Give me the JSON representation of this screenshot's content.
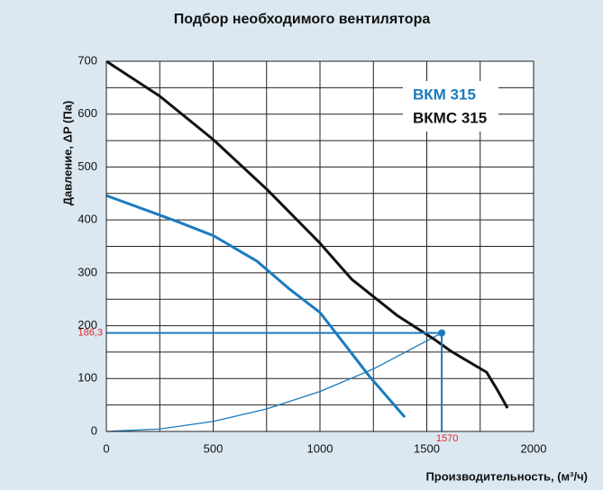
{
  "chart_data": {
    "type": "line",
    "title": "Подбор необходимого вентилятора",
    "y_label": "Давление, ΔP (Па)",
    "x_label": "Производительность, (м³/ч)",
    "xlim": [
      0,
      2000
    ],
    "ylim": [
      0,
      700
    ],
    "xticks": [
      0,
      500,
      1000,
      1500,
      2000
    ],
    "yticks": [
      0,
      100,
      200,
      300,
      400,
      500,
      600,
      700
    ],
    "xgrid": [
      0,
      250,
      500,
      750,
      1000,
      1250,
      1500,
      1750,
      2000
    ],
    "ygrid": [
      0,
      50,
      100,
      150,
      200,
      250,
      300,
      350,
      400,
      450,
      500,
      550,
      600,
      650,
      700
    ],
    "series": [
      {
        "name": "ВКМ 315",
        "color": "#1a7bbf",
        "x": [
          0,
          325,
          502,
          705,
          852,
          1000,
          1232,
          1397
        ],
        "values": [
          446,
          398,
          370,
          322,
          271,
          225,
          104,
          27
        ]
      },
      {
        "name": "ВКМС 315",
        "color": "#111111",
        "x": [
          0,
          250,
          500,
          751,
          1000,
          1148,
          1359,
          1536,
          1612,
          1780,
          1831,
          1878
        ],
        "values": [
          700,
          634,
          552,
          458,
          356,
          288,
          220,
          174,
          152,
          112,
          78,
          44
        ]
      }
    ],
    "system_curve": {
      "color": "#1a7bbf",
      "x": [
        0,
        250,
        500,
        750,
        1000,
        1250,
        1570
      ],
      "values": [
        0,
        4.7,
        18.9,
        42.5,
        75.6,
        118.1,
        186.3
      ]
    },
    "operating_point": {
      "x": 1570,
      "y": {
        "value": 186.3,
        "label": "186,3"
      },
      "color": "#1a7bbf",
      "label_color": "#e0262b"
    }
  }
}
